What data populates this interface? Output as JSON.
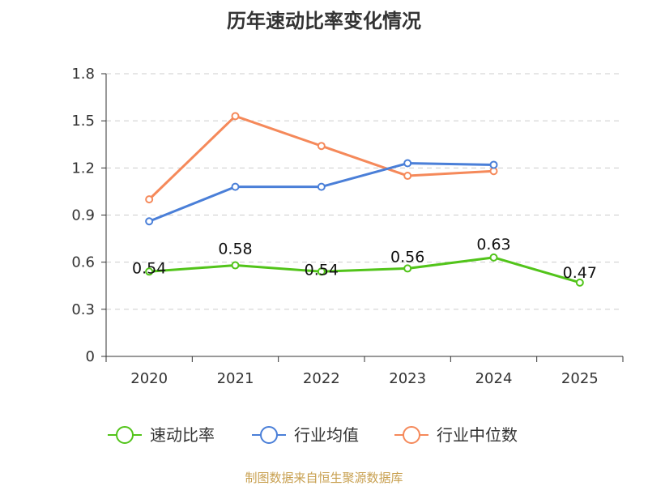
{
  "chart_data": {
    "type": "line",
    "title": "历年速动比率变化情况",
    "categories": [
      "2020",
      "2021",
      "2022",
      "2023",
      "2024",
      "2025"
    ],
    "ylim": [
      0,
      1.8
    ],
    "yticks": [
      "0",
      "0.3",
      "0.6",
      "0.9",
      "1.2",
      "1.5",
      "1.8"
    ],
    "grid": true,
    "legend_position": "bottom-center",
    "series": [
      {
        "name": "速动比率",
        "color": "#52c41a",
        "values": [
          0.54,
          0.58,
          0.54,
          0.56,
          0.63,
          0.47
        ],
        "labels": [
          "0.54",
          "0.58",
          "0.54",
          "0.56",
          "0.63",
          "0.47"
        ],
        "show_labels": true
      },
      {
        "name": "行业均值",
        "color": "#4a7fd8",
        "values": [
          0.86,
          1.08,
          1.08,
          1.23,
          1.22,
          null
        ],
        "show_labels": false
      },
      {
        "name": "行业中位数",
        "color": "#f5895a",
        "values": [
          1.0,
          1.53,
          1.34,
          1.15,
          1.18,
          null
        ],
        "show_labels": false
      }
    ]
  },
  "source_text": "制图数据来自恒生聚源数据库"
}
